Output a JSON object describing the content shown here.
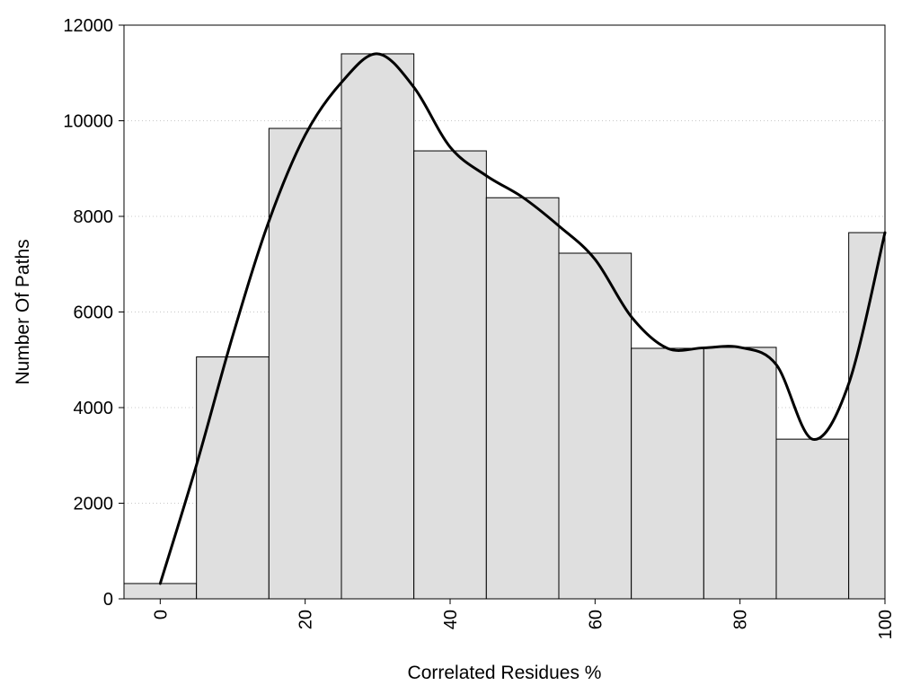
{
  "chart_data": {
    "type": "bar",
    "xlabel": "Correlated Residues %",
    "ylabel": "Number Of Paths",
    "xlim": [
      -5,
      100
    ],
    "ylim": [
      0,
      12000
    ],
    "x_ticks": [
      "0",
      "20",
      "40",
      "60",
      "80",
      "100"
    ],
    "y_ticks": [
      "0",
      "2000",
      "4000",
      "6000",
      "8000",
      "10000",
      "12000"
    ],
    "grid": "horizontal dotted",
    "legend": "none",
    "bars": [
      {
        "x": 0,
        "value": 320
      },
      {
        "x": 10,
        "value": 5060
      },
      {
        "x": 20,
        "value": 9840
      },
      {
        "x": 30,
        "value": 11400
      },
      {
        "x": 40,
        "value": 9370
      },
      {
        "x": 50,
        "value": 8390
      },
      {
        "x": 60,
        "value": 7230
      },
      {
        "x": 70,
        "value": 5240
      },
      {
        "x": 80,
        "value": 5260
      },
      {
        "x": 90,
        "value": 3340
      },
      {
        "x": 100,
        "value": 7660
      }
    ],
    "bar_width": 10,
    "series": [
      {
        "type": "line",
        "smooth": true,
        "x": [
          0,
          5,
          10,
          15,
          20,
          25,
          30,
          35,
          40,
          45,
          50,
          55,
          60,
          65,
          70,
          75,
          80,
          85,
          90,
          95,
          100
        ],
        "values": [
          320,
          2800,
          5500,
          7900,
          9700,
          10800,
          11400,
          10700,
          9450,
          8850,
          8400,
          7800,
          7100,
          5900,
          5240,
          5250,
          5260,
          4900,
          3340,
          4500,
          7660
        ]
      }
    ],
    "colors": {
      "bar_fill": "#dfdfdf",
      "bar_stroke": "#000000",
      "line": "#000000",
      "grid": "#c8c8c8"
    }
  }
}
